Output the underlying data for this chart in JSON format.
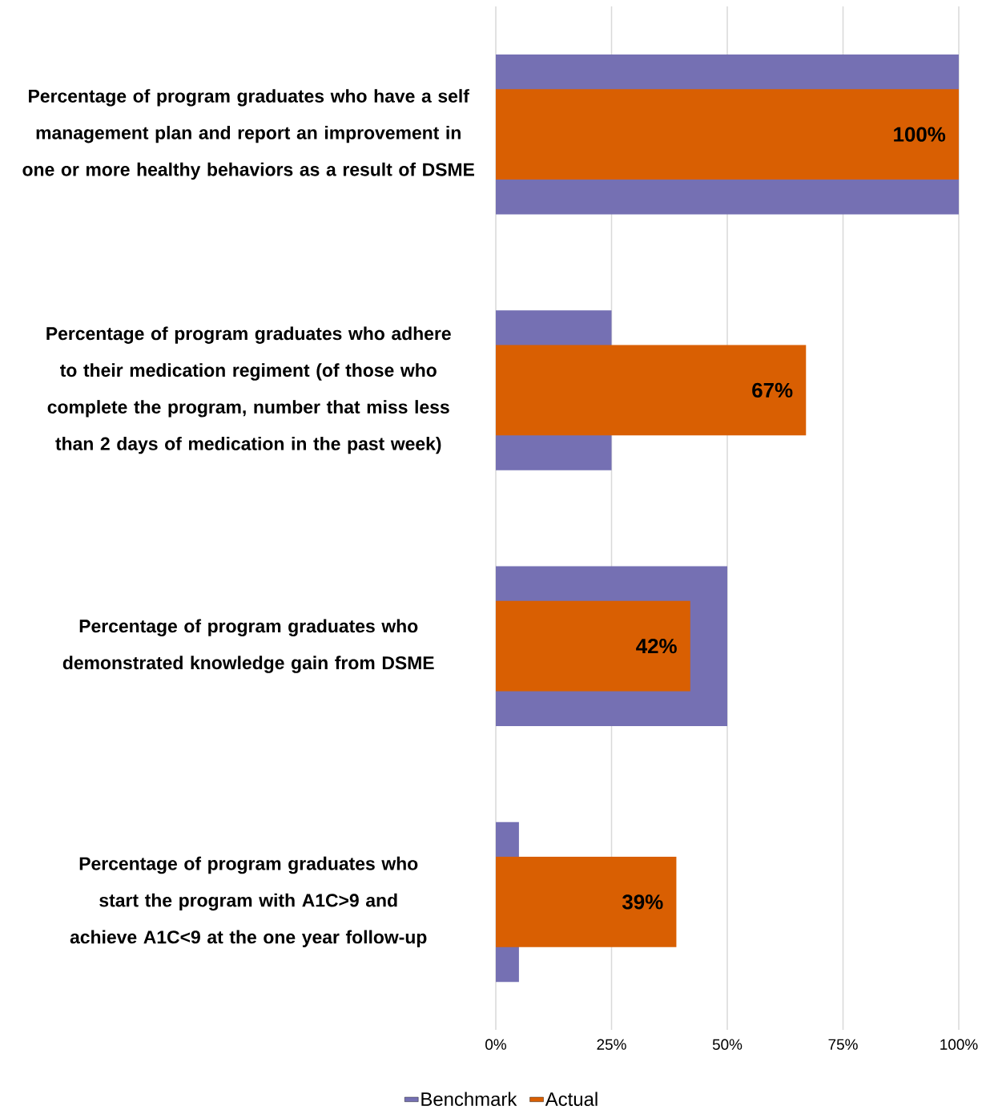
{
  "chart_data": {
    "type": "bar",
    "orientation": "horizontal",
    "categories": [
      "Percentage of program graduates who have a self management plan and report an improvement in one or more healthy behaviors as a result of DSME",
      "Percentage of program graduates who adhere to their medication regiment (of those who complete the program, number that miss less than 2 days of medication in the past week)",
      "Percentage of program graduates who demonstrated knowledge gain from DSME",
      "Percentage of program graduates who start the program with A1C>9 and achieve A1C<9 at the one year follow-up"
    ],
    "series": [
      {
        "name": "Benchmark",
        "color": "#7570b3",
        "values": [
          100,
          25,
          50,
          5
        ]
      },
      {
        "name": "Actual",
        "color": "#d95f02",
        "values": [
          100,
          67,
          42,
          39
        ],
        "value_labels": [
          "100%",
          "67%",
          "42%",
          "39%"
        ]
      }
    ],
    "xlim": [
      0,
      100
    ],
    "xticks": [
      {
        "value": 0,
        "label": "0%"
      },
      {
        "value": 25,
        "label": "25%"
      },
      {
        "value": 50,
        "label": "50%"
      },
      {
        "value": 75,
        "label": "75%"
      },
      {
        "value": 100,
        "label": "100%"
      }
    ],
    "grid": "x",
    "legend": "bottom"
  }
}
